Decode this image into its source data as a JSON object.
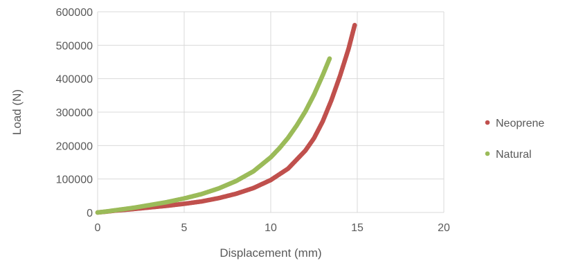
{
  "chart_data": {
    "type": "scatter",
    "xlabel": "Displacement (mm)",
    "ylabel": "Load (N)",
    "xlim": [
      0,
      20
    ],
    "ylim": [
      0,
      600000
    ],
    "xticks": [
      "0",
      "5",
      "10",
      "15",
      "20"
    ],
    "yticks": [
      "0",
      "100000",
      "200000",
      "300000",
      "400000",
      "500000",
      "600000"
    ],
    "grid": true,
    "legend_position": "right",
    "series": [
      {
        "name": "Neoprene",
        "color": "#c0504d",
        "points": [
          [
            0.0,
            0
          ],
          [
            0.5,
            2500
          ],
          [
            1.0,
            5500
          ],
          [
            2.0,
            10000
          ],
          [
            3.0,
            15000
          ],
          [
            4.0,
            20000
          ],
          [
            5.0,
            26000
          ],
          [
            6.0,
            33000
          ],
          [
            7.0,
            43000
          ],
          [
            8.0,
            56000
          ],
          [
            9.0,
            73000
          ],
          [
            10.0,
            97000
          ],
          [
            11.0,
            131000
          ],
          [
            12.0,
            185000
          ],
          [
            12.5,
            222000
          ],
          [
            13.0,
            272000
          ],
          [
            13.5,
            335000
          ],
          [
            14.0,
            408000
          ],
          [
            14.5,
            490000
          ],
          [
            14.85,
            560000
          ]
        ]
      },
      {
        "name": "Natural",
        "color": "#9bbb59",
        "points": [
          [
            0.0,
            0
          ],
          [
            0.5,
            3000
          ],
          [
            1.0,
            6500
          ],
          [
            2.0,
            13500
          ],
          [
            3.0,
            22000
          ],
          [
            4.0,
            31000
          ],
          [
            5.0,
            42000
          ],
          [
            6.0,
            55000
          ],
          [
            7.0,
            72000
          ],
          [
            8.0,
            94000
          ],
          [
            9.0,
            123000
          ],
          [
            10.0,
            165000
          ],
          [
            10.5,
            192000
          ],
          [
            11.0,
            223000
          ],
          [
            11.5,
            260000
          ],
          [
            12.0,
            302000
          ],
          [
            12.5,
            352000
          ],
          [
            13.0,
            410000
          ],
          [
            13.4,
            460000
          ]
        ]
      }
    ]
  }
}
